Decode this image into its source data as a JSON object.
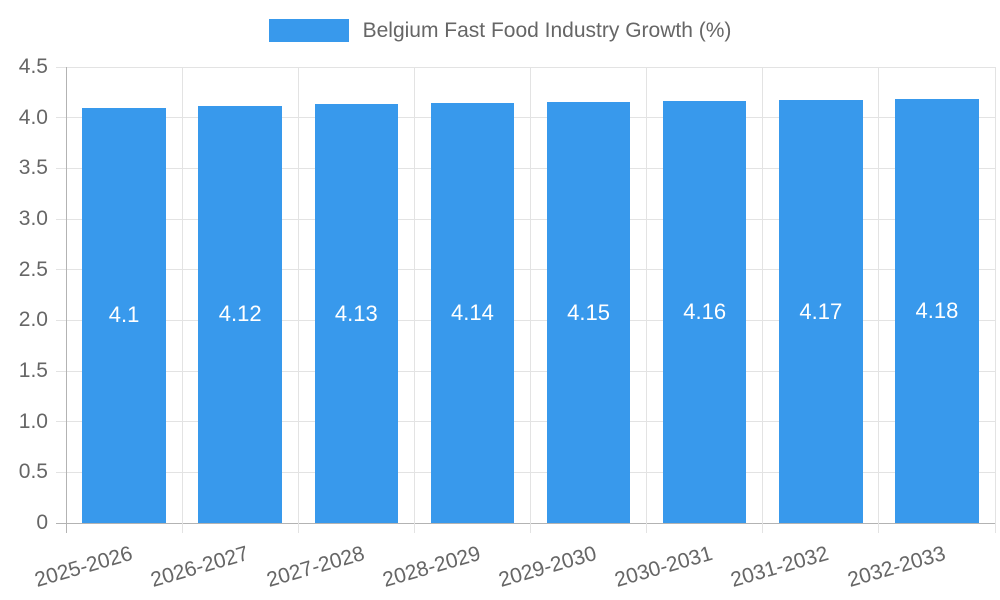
{
  "chart_data": {
    "type": "bar",
    "title": "Belgium Fast Food Industry Growth (%)",
    "legend": {
      "position": "top",
      "label": "Belgium Fast Food Industry Growth (%)"
    },
    "categories": [
      "2025-2026",
      "2026-2027",
      "2027-2028",
      "2028-2029",
      "2029-2030",
      "2030-2031",
      "2031-2032",
      "2032-2033"
    ],
    "series": [
      {
        "name": "Belgium Fast Food Industry Growth (%)",
        "values": [
          4.1,
          4.12,
          4.13,
          4.14,
          4.15,
          4.16,
          4.17,
          4.18
        ]
      }
    ],
    "bar_labels": [
      "4.1",
      "4.12",
      "4.13",
      "4.14",
      "4.15",
      "4.16",
      "4.17",
      "4.18"
    ],
    "xlabel": "",
    "ylabel": "",
    "ylim": [
      0,
      4.5
    ],
    "y_ticks": {
      "values": [
        0,
        0.5,
        1,
        1.5,
        2,
        2.5,
        3,
        3.5,
        4,
        4.5
      ],
      "labels": [
        "0",
        "0.5",
        "1.0",
        "1.5",
        "2.0",
        "2.5",
        "3.0",
        "3.5",
        "4.0",
        "4.5"
      ]
    },
    "grid": true,
    "x_label_rotation_deg": -16,
    "colors": {
      "bar": "#3899EC",
      "grid": "#E3E3E3",
      "axis": "#B3B3B3",
      "text": "#666666",
      "bar_label": "#FFFFFF",
      "background": "#FFFFFF"
    }
  }
}
